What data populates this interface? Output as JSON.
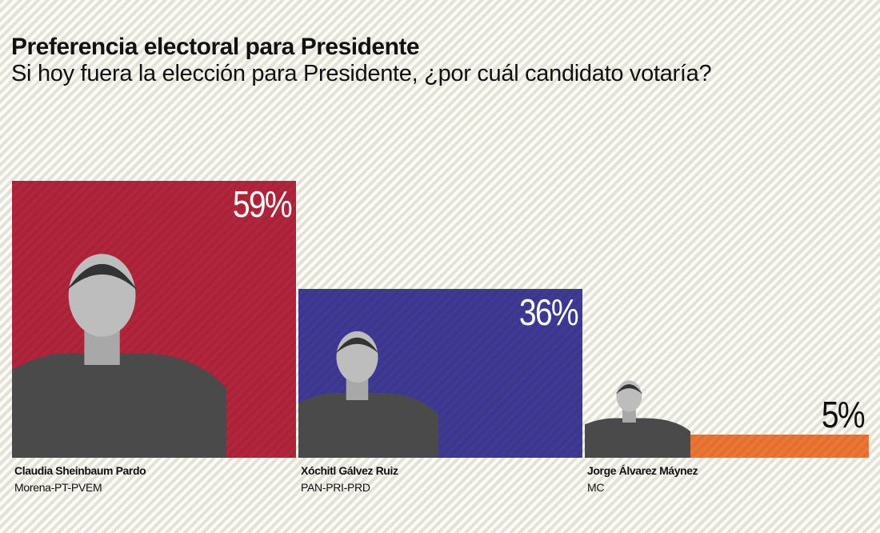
{
  "chart_data": {
    "type": "bar",
    "title": "Preferencia electoral para Presidente",
    "subtitle": "Si hoy fuera la elección para Presidente, ¿por cuál candidato votaría?",
    "categories": [
      "Claudia Sheinbaum Pardo",
      "Xóchitl Gálvez Ruiz",
      "Jorge Álvarez Máynez"
    ],
    "parties": [
      "Morena-PT-PVEM",
      "PAN-PRI-PRD",
      "MC"
    ],
    "values": [
      59,
      36,
      5
    ],
    "labels": [
      "59%",
      "36%",
      "5%"
    ],
    "colors": [
      "#b3253b",
      "#3f3a95",
      "#ee7633"
    ],
    "ylim": [
      0,
      59
    ],
    "grid": false
  }
}
